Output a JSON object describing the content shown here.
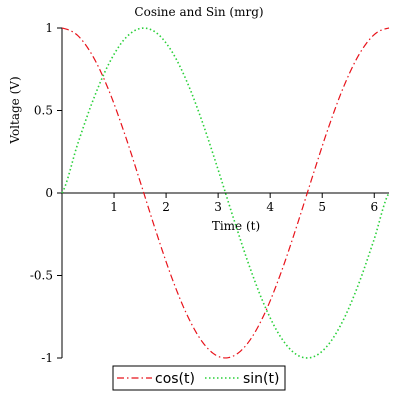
{
  "chart_data": {
    "type": "line",
    "title": "Cosine and Sin (mrg)",
    "xlabel": "Time (t)",
    "ylabel": "Voltage (V)",
    "xlim": [
      0,
      6.2832
    ],
    "ylim": [
      -1,
      1
    ],
    "x_ticks": [
      1,
      2,
      3,
      4,
      5,
      6
    ],
    "x_tick_labels": [
      "1",
      "2",
      "3",
      "4",
      "5",
      "6"
    ],
    "y_ticks": [
      -1,
      -0.5,
      0,
      0.5,
      1
    ],
    "y_tick_labels": [
      "-1",
      "-0.5",
      "0",
      "0.5",
      "1"
    ],
    "grid": false,
    "legend_position": "bottom-center",
    "series": [
      {
        "name": "cos(t)",
        "color": "#e8131b",
        "dash": "dash-dot",
        "x": [
          0,
          0.3,
          0.6,
          0.9,
          1.2,
          1.5,
          1.8,
          2.1,
          2.4,
          2.7,
          3.0,
          3.3,
          3.6,
          3.9,
          4.2,
          4.5,
          4.8,
          5.1,
          5.4,
          5.7,
          6.0,
          6.2832
        ],
        "y": [
          1.0,
          0.955,
          0.825,
          0.622,
          0.362,
          0.071,
          -0.227,
          -0.505,
          -0.737,
          -0.904,
          -0.99,
          -0.987,
          -0.897,
          -0.726,
          -0.49,
          -0.211,
          0.087,
          0.378,
          0.635,
          0.835,
          0.96,
          1.0
        ]
      },
      {
        "name": "sin(t)",
        "color": "#29d039",
        "dash": "dotted",
        "x": [
          0,
          0.3,
          0.6,
          0.9,
          1.2,
          1.5,
          1.8,
          2.1,
          2.4,
          2.7,
          3.0,
          3.3,
          3.6,
          3.9,
          4.2,
          4.5,
          4.8,
          5.1,
          5.4,
          5.7,
          6.0,
          6.2832
        ],
        "y": [
          0.0,
          0.296,
          0.565,
          0.783,
          0.932,
          0.997,
          0.974,
          0.863,
          0.675,
          0.427,
          0.141,
          -0.158,
          -0.443,
          -0.688,
          -0.872,
          -0.978,
          -0.996,
          -0.926,
          -0.773,
          -0.551,
          -0.279,
          0.0
        ]
      }
    ]
  }
}
